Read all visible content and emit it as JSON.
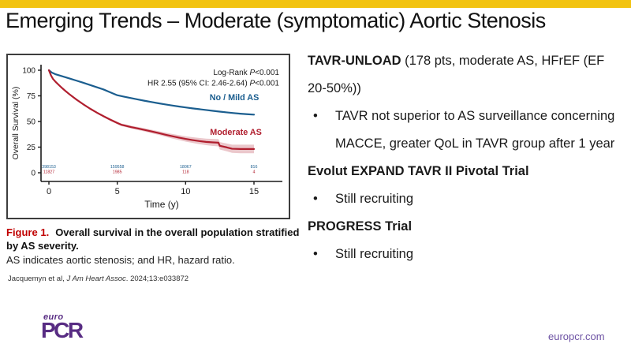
{
  "slide": {
    "title": "Emerging Trends – Moderate (symptomatic) Aortic Stenosis",
    "accent_color": "#F2C311",
    "logo_top": "euro",
    "logo_main": "PCR",
    "logo_color": "#582C83",
    "footer_link": "europcr.com"
  },
  "figure_caption": {
    "label": "Figure 1.",
    "bold_text": "Overall survival in the overall population stratified by AS severity.",
    "note_text": "AS indicates aortic stenosis; and HR, hazard ratio.",
    "citation_prefix": "Jacquemyn et al, ",
    "citation_journal": "J Am Heart Assoc",
    "citation_suffix": ". 2024;13:e033872"
  },
  "right_panel": {
    "items": [
      {
        "bold": "TAVR-UNLOAD",
        "normal": " (178 pts, moderate AS, HFrEF (EF 20-50%))"
      },
      {
        "bullet": "TAVR not superior to AS surveillance concerning MACCE, greater QoL in TAVR group after 1 year"
      },
      {
        "bold": "Evolut EXPAND TAVR II Pivotal Trial",
        "normal": ""
      },
      {
        "bullet": "Still recruiting"
      },
      {
        "bold": "PROGRESS Trial",
        "normal": ""
      },
      {
        "bullet": "Still recruiting"
      }
    ],
    "bullet_char": "•"
  },
  "chart_data": {
    "type": "line",
    "subtype": "kaplan-meier",
    "title": "",
    "xlabel": "Time (y)",
    "ylabel": "Overall Survival (%)",
    "xlim": [
      0,
      15
    ],
    "ylim": [
      0,
      100
    ],
    "xticks": [
      0,
      5,
      10,
      15
    ],
    "yticks": [
      0,
      25,
      50,
      75,
      100
    ],
    "grid": false,
    "legend_position": "inline-labels",
    "stats": [
      {
        "label": "Log-Rank",
        "p": "P",
        "value": "<0.001"
      },
      {
        "label": "HR 2.55 (95% CI: 2.46-2.64)",
        "p": "P",
        "value": "<0.001"
      }
    ],
    "at_risk_x": [
      0,
      5,
      10,
      15
    ],
    "series": [
      {
        "name": "No / Mild AS",
        "color": "#1B5E8F",
        "at_risk": [
          "398153",
          "159558",
          "18067",
          "816"
        ],
        "points": [
          [
            0,
            100
          ],
          [
            0.2,
            97.8
          ],
          [
            0.5,
            96
          ],
          [
            1,
            94
          ],
          [
            1.5,
            92
          ],
          [
            2,
            89.9
          ],
          [
            2.5,
            87.8
          ],
          [
            3,
            85.6
          ],
          [
            3.5,
            83.4
          ],
          [
            4,
            81.2
          ],
          [
            4.5,
            78.4
          ],
          [
            5,
            75.6
          ],
          [
            5.5,
            74.2
          ],
          [
            6,
            72.8
          ],
          [
            6.5,
            71.5
          ],
          [
            7,
            70.2
          ],
          [
            7.5,
            69
          ],
          [
            8,
            67.8
          ],
          [
            8.5,
            66.7
          ],
          [
            9,
            65.6
          ],
          [
            9.5,
            64.6
          ],
          [
            10,
            63.7
          ],
          [
            10.5,
            62.8
          ],
          [
            11,
            62
          ],
          [
            11.5,
            61.2
          ],
          [
            12,
            60.4
          ],
          [
            12.5,
            59.6
          ],
          [
            13,
            58.9
          ],
          [
            13.5,
            58.2
          ],
          [
            14,
            57.6
          ],
          [
            14.5,
            57.1
          ],
          [
            15,
            56.7
          ]
        ]
      },
      {
        "name": "Moderate AS",
        "color": "#B01E2E",
        "ci_color": "rgba(176,30,46,0.25)",
        "at_risk": [
          "11827",
          "1985",
          "118",
          "4"
        ],
        "points": [
          [
            0,
            100
          ],
          [
            0.15,
            95
          ],
          [
            0.3,
            91.5
          ],
          [
            0.5,
            88.5
          ],
          [
            0.75,
            85.3
          ],
          [
            1,
            82.2
          ],
          [
            1.25,
            79.3
          ],
          [
            1.5,
            76.6
          ],
          [
            1.75,
            74
          ],
          [
            2,
            71.5
          ],
          [
            2.5,
            66.9
          ],
          [
            3,
            62.6
          ],
          [
            3.5,
            58.7
          ],
          [
            4,
            55.1
          ],
          [
            4.5,
            51.7
          ],
          [
            5,
            48.6
          ],
          [
            5.3,
            46.8
          ],
          [
            5.5,
            46.2
          ],
          [
            6,
            44.6
          ],
          [
            6.5,
            43.2
          ],
          [
            7,
            41.8
          ],
          [
            7.5,
            40.3
          ],
          [
            8,
            38.8
          ],
          [
            8.5,
            37.2
          ],
          [
            9,
            35.7
          ],
          [
            9.5,
            34.3
          ],
          [
            10,
            33
          ],
          [
            10.5,
            31.9
          ],
          [
            11,
            30.9
          ],
          [
            11.5,
            30.1
          ],
          [
            12,
            29.6
          ],
          [
            12.4,
            29.3
          ],
          [
            12.5,
            26.3
          ],
          [
            13,
            24.8
          ],
          [
            13.4,
            23.4
          ],
          [
            14,
            23.2
          ],
          [
            15,
            23.2
          ]
        ],
        "ci": [
          0,
          0.3,
          0.3,
          0.4,
          0.4,
          0.5,
          0.5,
          0.5,
          0.6,
          0.6,
          0.7,
          0.8,
          0.9,
          1,
          1.1,
          1.2,
          1.2,
          1.3,
          1.4,
          1.5,
          1.6,
          1.7,
          1.8,
          2,
          2.2,
          2.4,
          2.6,
          2.8,
          3,
          3.2,
          3.4,
          3.5,
          3.6,
          3.8,
          4,
          4.2,
          4.2
        ]
      }
    ]
  }
}
